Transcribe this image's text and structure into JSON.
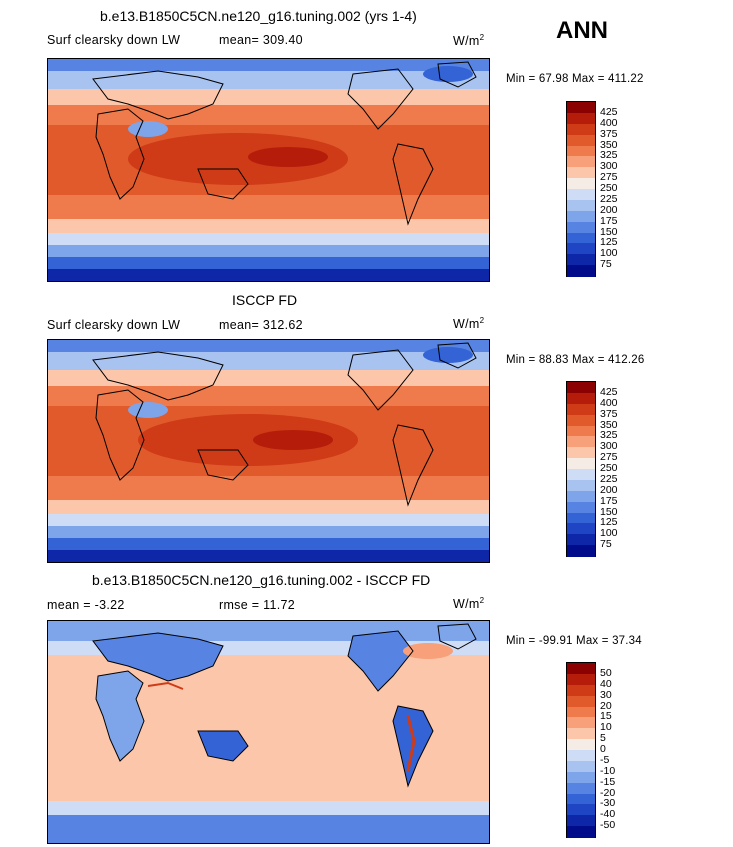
{
  "season": "ANN",
  "panels": [
    {
      "title": "b.e13.B1850C5CN.ne120_g16.tuning.002 (yrs 1-4)",
      "left_label": "Surf clearsky down LW",
      "center_label": "mean= 309.40",
      "units_base": "W/m",
      "units_exp": "2",
      "minmax": "Min =  67.98 Max = 411.22",
      "colorbar_labels": [
        "425",
        "400",
        "375",
        "350",
        "325",
        "300",
        "275",
        "250",
        "225",
        "200",
        "175",
        "150",
        "125",
        "100",
        "75"
      ],
      "colorbar_colors": [
        "#8b0000",
        "#b51d0a",
        "#cf3a17",
        "#e05a2b",
        "#ef7a4b",
        "#f7a07a",
        "#fbc6a9",
        "#f5ece6",
        "#cfdcf5",
        "#a8c3f0",
        "#7ea4ea",
        "#5784e2",
        "#3463d6",
        "#1f45c4",
        "#0e26a8",
        "#000c8a"
      ]
    },
    {
      "title": "ISCCP FD",
      "left_label": "Surf clearsky down LW",
      "center_label": "mean= 312.62",
      "units_base": "W/m",
      "units_exp": "2",
      "minmax": "Min =  88.83 Max = 412.26",
      "colorbar_labels": [
        "425",
        "400",
        "375",
        "350",
        "325",
        "300",
        "275",
        "250",
        "225",
        "200",
        "175",
        "150",
        "125",
        "100",
        "75"
      ],
      "colorbar_colors": [
        "#8b0000",
        "#b51d0a",
        "#cf3a17",
        "#e05a2b",
        "#ef7a4b",
        "#f7a07a",
        "#fbc6a9",
        "#f5ece6",
        "#cfdcf5",
        "#a8c3f0",
        "#7ea4ea",
        "#5784e2",
        "#3463d6",
        "#1f45c4",
        "#0e26a8",
        "#000c8a"
      ]
    },
    {
      "title": "b.e13.B1850C5CN.ne120_g16.tuning.002 - ISCCP FD",
      "left_label": "mean =  -3.22",
      "center_label": "rmse =  11.72",
      "units_base": "W/m",
      "units_exp": "2",
      "minmax": "Min = -99.91 Max =  37.34",
      "colorbar_labels": [
        "50",
        "40",
        "30",
        "20",
        "15",
        "10",
        "5",
        "0",
        "-5",
        "-10",
        "-15",
        "-20",
        "-30",
        "-40",
        "-50"
      ],
      "colorbar_colors": [
        "#8b0000",
        "#b51d0a",
        "#cf3a17",
        "#e05a2b",
        "#ef7a4b",
        "#f7a07a",
        "#fbc6a9",
        "#f5ece6",
        "#cfdcf5",
        "#a8c3f0",
        "#7ea4ea",
        "#5784e2",
        "#3463d6",
        "#1f45c4",
        "#0e26a8",
        "#000c8a"
      ]
    }
  ]
}
